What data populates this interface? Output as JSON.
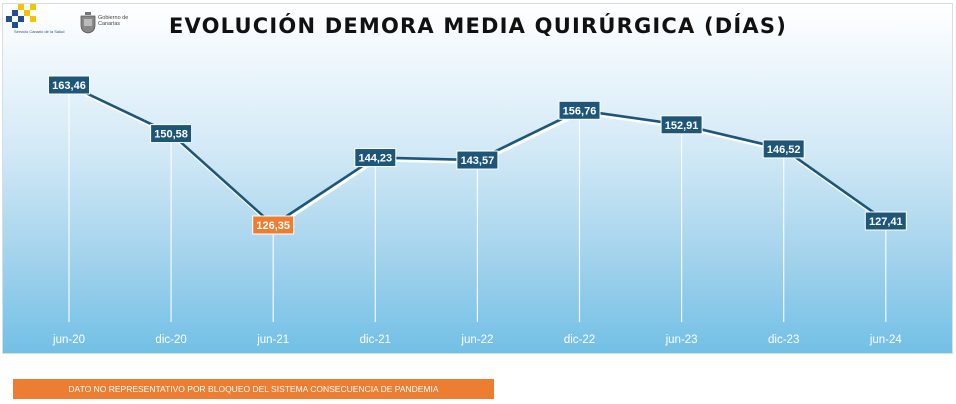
{
  "logos": {
    "scs_caption": "Servicio Canario de la Salud",
    "gobierno_caption": "Gobierno de Canarias"
  },
  "chart_data": {
    "type": "line",
    "title": "EVOLUCIÓN DEMORA MEDIA QUIRÚRGICA (DÍAS)",
    "xlabel": "",
    "ylabel": "",
    "categories": [
      "jun-20",
      "dic-20",
      "jun-21",
      "dic-21",
      "jun-22",
      "dic-22",
      "jun-23",
      "dic-23",
      "jun-24"
    ],
    "value_labels": [
      "163,46",
      "150,58",
      "126,35",
      "144,23",
      "143,57",
      "156,76",
      "152,91",
      "146,52",
      "127,41"
    ],
    "series": [
      {
        "values": [
          163.46,
          150.58,
          126.35,
          144.23,
          143.57,
          156.76,
          152.91,
          146.52,
          127.41
        ]
      }
    ],
    "highlight_index": 2,
    "grid": false,
    "legend": "none",
    "colors": {
      "line": "#1d5678",
      "label_bg": "#1d5678",
      "highlight_bg": "#ed7d31",
      "label_text": "#ffffff",
      "tick_text": "#ffffff"
    }
  },
  "note": {
    "text": "DATO NO REPRESENTATIVO POR BLOQUEO DEL SISTEMA CONSECUENCIA DE PANDEMIA",
    "color": "#ed7d31"
  }
}
